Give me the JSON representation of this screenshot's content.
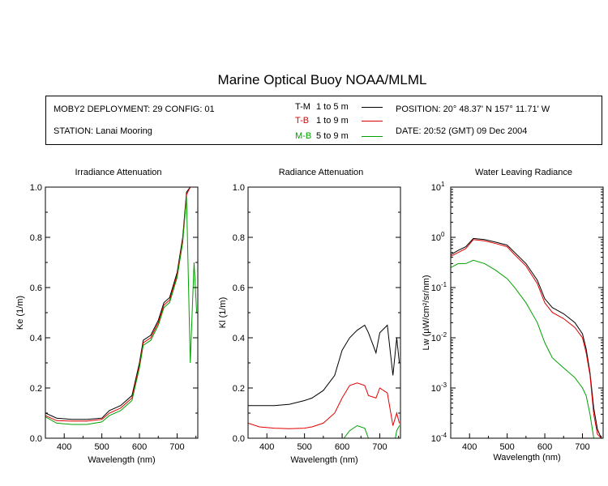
{
  "title": "Marine Optical Buoy NOAA/MLML",
  "info": {
    "deployment": "MOBY2 DEPLOYMENT: 29 CONFIG: 01",
    "station": "STATION: Lanai Mooring",
    "position": "POSITION: 20° 48.37' N   157° 11.71' W",
    "date": "DATE: 20:52 (GMT) 09 Dec 2004"
  },
  "legend": [
    {
      "code": "T-M",
      "range": "1 to 5  m",
      "color": "#000000"
    },
    {
      "code": "T-B",
      "range": "1 to 9  m",
      "color": "#e00000"
    },
    {
      "code": "M-B",
      "range": "5 to 9  m",
      "color": "#00a000"
    }
  ],
  "chart_data": [
    {
      "type": "line",
      "title": "Irradiance Attenuation",
      "xlabel": "Wavelength (nm)",
      "ylabel": "Ke  (1/m)",
      "xlim": [
        350,
        755
      ],
      "ylim": [
        0,
        1.0
      ],
      "xticks": [
        "400",
        "500",
        "600",
        "700"
      ],
      "yticks": [
        "0.0",
        "0.2",
        "0.4",
        "0.6",
        "0.8",
        "1.0"
      ],
      "x": [
        350,
        380,
        420,
        460,
        500,
        520,
        550,
        580,
        600,
        610,
        630,
        650,
        665,
        680,
        700,
        715,
        725,
        735,
        745,
        752
      ],
      "series": [
        {
          "name": "T-M",
          "color": "#000000",
          "values": [
            0.1,
            0.08,
            0.075,
            0.075,
            0.08,
            0.11,
            0.13,
            0.17,
            0.3,
            0.39,
            0.41,
            0.47,
            0.54,
            0.56,
            0.66,
            0.8,
            0.98,
            1.0,
            1.0,
            1.0
          ]
        },
        {
          "name": "T-B",
          "color": "#e00000",
          "values": [
            0.09,
            0.07,
            0.068,
            0.068,
            0.075,
            0.1,
            0.12,
            0.16,
            0.29,
            0.38,
            0.4,
            0.46,
            0.53,
            0.55,
            0.65,
            0.79,
            0.97,
            1.0,
            1.0,
            1.0
          ]
        },
        {
          "name": "M-B",
          "color": "#00a000",
          "values": [
            0.085,
            0.06,
            0.055,
            0.055,
            0.065,
            0.09,
            0.11,
            0.15,
            0.28,
            0.37,
            0.39,
            0.45,
            0.52,
            0.54,
            0.64,
            0.78,
            0.96,
            0.3,
            0.7,
            0.5
          ]
        }
      ]
    },
    {
      "type": "line",
      "title": "Radiance Attenuation",
      "xlabel": "Wavelength (nm)",
      "ylabel": "Kl  (1/m)",
      "xlim": [
        350,
        755
      ],
      "ylim": [
        0,
        1.0
      ],
      "xticks": [
        "400",
        "500",
        "600",
        "700"
      ],
      "yticks": [
        "0.0",
        "0.2",
        "0.4",
        "0.6",
        "0.8",
        "1.0"
      ],
      "x": [
        350,
        380,
        420,
        460,
        500,
        520,
        550,
        580,
        600,
        620,
        640,
        660,
        670,
        690,
        700,
        720,
        735,
        745,
        752
      ],
      "series": [
        {
          "name": "T-M",
          "color": "#000000",
          "values": [
            0.13,
            0.13,
            0.13,
            0.135,
            0.15,
            0.16,
            0.19,
            0.25,
            0.35,
            0.4,
            0.43,
            0.45,
            0.42,
            0.34,
            0.42,
            0.45,
            0.25,
            0.4,
            0.3
          ]
        },
        {
          "name": "T-B",
          "color": "#e00000",
          "values": [
            0.06,
            0.045,
            0.04,
            0.038,
            0.04,
            0.045,
            0.06,
            0.1,
            0.16,
            0.21,
            0.22,
            0.21,
            0.17,
            0.16,
            0.2,
            0.18,
            0.05,
            0.1,
            0.06
          ]
        },
        {
          "name": "M-B",
          "color": "#00a000",
          "values": [
            -0.03,
            -0.04,
            -0.05,
            -0.05,
            -0.05,
            -0.04,
            -0.03,
            -0.02,
            -0.01,
            0.03,
            0.05,
            0.04,
            0.0,
            -0.02,
            -0.01,
            -0.03,
            -0.05,
            0.03,
            0.05
          ]
        }
      ]
    },
    {
      "type": "line",
      "title": "Water Leaving Radiance",
      "xlabel": "Wavelength (nm)",
      "ylabel": "Lw  (µW/cm²/sr/nm)",
      "scale": "log",
      "xlim": [
        350,
        755
      ],
      "ylim": [
        0.0001,
        10
      ],
      "xticks": [
        "400",
        "500",
        "600",
        "700"
      ],
      "yticks": [
        "10^-4",
        "10^-3",
        "10^-2",
        "10^-1",
        "10^0",
        "10^1"
      ],
      "x": [
        350,
        370,
        390,
        410,
        440,
        470,
        500,
        520,
        550,
        580,
        600,
        620,
        650,
        680,
        700,
        710,
        720,
        730,
        740,
        750
      ],
      "series": [
        {
          "name": "T-M",
          "color": "#000000",
          "values": [
            0.45,
            0.55,
            0.65,
            0.95,
            0.9,
            0.8,
            0.7,
            0.5,
            0.3,
            0.14,
            0.06,
            0.04,
            0.03,
            0.02,
            0.012,
            0.006,
            0.002,
            0.0004,
            0.00015,
            0.0001
          ]
        },
        {
          "name": "T-B",
          "color": "#e00000",
          "values": [
            0.42,
            0.5,
            0.6,
            0.9,
            0.85,
            0.75,
            0.65,
            0.45,
            0.27,
            0.12,
            0.05,
            0.032,
            0.024,
            0.016,
            0.01,
            0.005,
            0.0018,
            0.0003,
            0.00012,
            0.0001
          ]
        },
        {
          "name": "M-B",
          "color": "#00a000",
          "values": [
            0.25,
            0.3,
            0.3,
            0.35,
            0.3,
            0.22,
            0.15,
            0.1,
            0.05,
            0.02,
            0.008,
            0.004,
            0.0025,
            0.0016,
            0.001,
            0.0007,
            0.0003,
            0.0001,
            0.0001,
            0.0001
          ]
        }
      ]
    }
  ]
}
